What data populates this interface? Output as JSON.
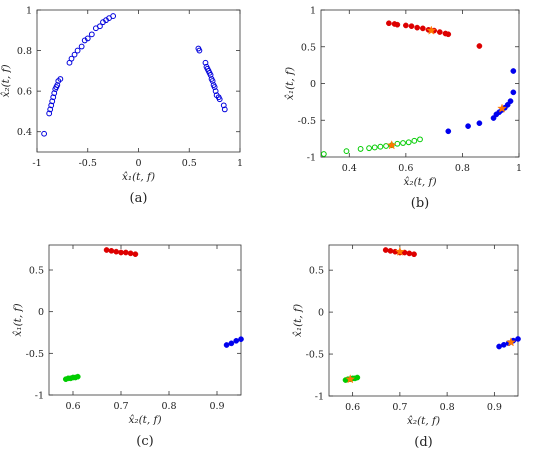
{
  "chart_data": [
    {
      "id": "a",
      "type": "scatter",
      "caption": "(a)",
      "xlabel": "x̂₁(t, f)",
      "ylabel": "x̂₂(t, f)",
      "xlim": [
        -1,
        1
      ],
      "ylim": [
        0.3,
        1.0
      ],
      "xticks": [
        -1,
        -0.5,
        0,
        0.5,
        1
      ],
      "yticks": [
        0.4,
        0.6,
        0.8,
        1
      ],
      "series": [
        {
          "color": "#0000dd",
          "marker": "circle-open",
          "points": [
            [
              -0.93,
              0.39
            ],
            [
              -0.88,
              0.49
            ],
            [
              -0.87,
              0.51
            ],
            [
              -0.86,
              0.53
            ],
            [
              -0.85,
              0.55
            ],
            [
              -0.84,
              0.57
            ],
            [
              -0.83,
              0.59
            ],
            [
              -0.82,
              0.61
            ],
            [
              -0.81,
              0.62
            ],
            [
              -0.8,
              0.63
            ],
            [
              -0.79,
              0.65
            ],
            [
              -0.77,
              0.66
            ],
            [
              -0.68,
              0.74
            ],
            [
              -0.66,
              0.76
            ],
            [
              -0.63,
              0.78
            ],
            [
              -0.6,
              0.8
            ],
            [
              -0.56,
              0.82
            ],
            [
              -0.53,
              0.85
            ],
            [
              -0.5,
              0.86
            ],
            [
              -0.46,
              0.88
            ],
            [
              -0.42,
              0.91
            ],
            [
              -0.38,
              0.92
            ],
            [
              -0.35,
              0.94
            ],
            [
              -0.32,
              0.95
            ],
            [
              -0.29,
              0.96
            ],
            [
              -0.25,
              0.97
            ],
            [
              0.59,
              0.81
            ],
            [
              0.6,
              0.8
            ],
            [
              0.66,
              0.74
            ],
            [
              0.67,
              0.72
            ],
            [
              0.68,
              0.71
            ],
            [
              0.69,
              0.7
            ],
            [
              0.7,
              0.69
            ],
            [
              0.71,
              0.68
            ],
            [
              0.72,
              0.66
            ],
            [
              0.73,
              0.65
            ],
            [
              0.74,
              0.63
            ],
            [
              0.75,
              0.62
            ],
            [
              0.76,
              0.6
            ],
            [
              0.77,
              0.58
            ],
            [
              0.79,
              0.57
            ],
            [
              0.8,
              0.56
            ],
            [
              0.84,
              0.53
            ],
            [
              0.85,
              0.51
            ]
          ]
        }
      ]
    },
    {
      "id": "b",
      "type": "scatter",
      "caption": "(b)",
      "xlabel": "x̂₂(t, f)",
      "ylabel": "x̂₁(t, f)",
      "xlim": [
        0.3,
        1.0
      ],
      "ylim": [
        -1.0,
        1.0
      ],
      "xticks": [
        0.4,
        0.6,
        0.8,
        1
      ],
      "yticks": [
        -1,
        -0.5,
        0,
        0.5,
        1
      ],
      "series": [
        {
          "color": "#dd0000",
          "marker": "dot",
          "points": [
            [
              0.54,
              0.82
            ],
            [
              0.56,
              0.81
            ],
            [
              0.57,
              0.8
            ],
            [
              0.86,
              0.51
            ],
            [
              0.6,
              0.79
            ],
            [
              0.62,
              0.78
            ],
            [
              0.64,
              0.76
            ],
            [
              0.66,
              0.75
            ],
            [
              0.68,
              0.73
            ],
            [
              0.7,
              0.72
            ],
            [
              0.72,
              0.7
            ],
            [
              0.74,
              0.68
            ],
            [
              0.75,
              0.67
            ]
          ]
        },
        {
          "color": "#0000ee",
          "marker": "dot",
          "points": [
            [
              0.75,
              -0.65
            ],
            [
              0.82,
              -0.58
            ],
            [
              0.86,
              -0.54
            ],
            [
              0.91,
              -0.47
            ],
            [
              0.92,
              -0.42
            ],
            [
              0.93,
              -0.39
            ],
            [
              0.94,
              -0.36
            ],
            [
              0.95,
              -0.33
            ],
            [
              0.96,
              -0.29
            ],
            [
              0.97,
              -0.24
            ],
            [
              0.98,
              -0.12
            ],
            [
              0.98,
              0.17
            ]
          ]
        },
        {
          "color": "#00cc00",
          "marker": "circle-open",
          "points": [
            [
              0.31,
              -0.96
            ],
            [
              0.39,
              -0.92
            ],
            [
              0.44,
              -0.89
            ],
            [
              0.47,
              -0.88
            ],
            [
              0.49,
              -0.87
            ],
            [
              0.51,
              -0.86
            ],
            [
              0.53,
              -0.85
            ],
            [
              0.55,
              -0.84
            ],
            [
              0.57,
              -0.82
            ],
            [
              0.59,
              -0.81
            ],
            [
              0.61,
              -0.8
            ],
            [
              0.63,
              -0.78
            ],
            [
              0.65,
              -0.76
            ]
          ]
        },
        {
          "color": "#ff7700",
          "marker": "star",
          "points": [
            [
              0.69,
              0.72
            ],
            [
              0.55,
              -0.84
            ],
            [
              0.94,
              -0.34
            ]
          ]
        }
      ]
    },
    {
      "id": "c",
      "type": "scatter",
      "caption": "(c)",
      "xlabel": "x̂₂(t, f)",
      "ylabel": "x̂₁(t, f)",
      "xlim": [
        0.55,
        0.95
      ],
      "ylim": [
        -1.0,
        0.8
      ],
      "xticks": [
        0.6,
        0.7,
        0.8,
        0.9
      ],
      "yticks": [
        -1,
        -0.5,
        0,
        0.5
      ],
      "series": [
        {
          "color": "#dd0000",
          "marker": "dot",
          "points": [
            [
              0.67,
              0.74
            ],
            [
              0.68,
              0.73
            ],
            [
              0.69,
              0.72
            ],
            [
              0.7,
              0.71
            ],
            [
              0.71,
              0.71
            ],
            [
              0.72,
              0.7
            ],
            [
              0.73,
              0.69
            ]
          ]
        },
        {
          "color": "#0000ee",
          "marker": "dot",
          "points": [
            [
              0.92,
              -0.4
            ],
            [
              0.93,
              -0.38
            ],
            [
              0.94,
              -0.35
            ],
            [
              0.95,
              -0.33
            ]
          ]
        },
        {
          "color": "#00cc00",
          "marker": "dot",
          "points": [
            [
              0.585,
              -0.81
            ],
            [
              0.59,
              -0.8
            ],
            [
              0.595,
              -0.8
            ],
            [
              0.6,
              -0.79
            ],
            [
              0.605,
              -0.79
            ],
            [
              0.61,
              -0.78
            ]
          ]
        }
      ]
    },
    {
      "id": "d",
      "type": "scatter",
      "caption": "(d)",
      "xlabel": "x̂₂(t, f)",
      "ylabel": "x̂₁(t, f)",
      "xlim": [
        0.55,
        0.95
      ],
      "ylim": [
        -1.0,
        0.8
      ],
      "xticks": [
        0.6,
        0.7,
        0.8,
        0.9
      ],
      "yticks": [
        -1,
        -0.5,
        0,
        0.5
      ],
      "series": [
        {
          "color": "#dd0000",
          "marker": "dot",
          "points": [
            [
              0.67,
              0.74
            ],
            [
              0.68,
              0.73
            ],
            [
              0.69,
              0.72
            ],
            [
              0.7,
              0.71
            ],
            [
              0.71,
              0.71
            ],
            [
              0.72,
              0.7
            ],
            [
              0.73,
              0.69
            ]
          ]
        },
        {
          "color": "#0000ee",
          "marker": "dot",
          "points": [
            [
              0.91,
              -0.41
            ],
            [
              0.92,
              -0.39
            ],
            [
              0.93,
              -0.37
            ],
            [
              0.94,
              -0.34
            ],
            [
              0.95,
              -0.32
            ]
          ]
        },
        {
          "color": "#00cc00",
          "marker": "dot",
          "points": [
            [
              0.585,
              -0.81
            ],
            [
              0.59,
              -0.8
            ],
            [
              0.595,
              -0.8
            ],
            [
              0.6,
              -0.79
            ],
            [
              0.605,
              -0.79
            ],
            [
              0.61,
              -0.78
            ]
          ]
        },
        {
          "color": "#ff7700",
          "marker": "star",
          "points": [
            [
              0.7,
              0.72
            ],
            [
              0.595,
              -0.8
            ],
            [
              0.935,
              -0.36
            ]
          ]
        }
      ]
    }
  ]
}
